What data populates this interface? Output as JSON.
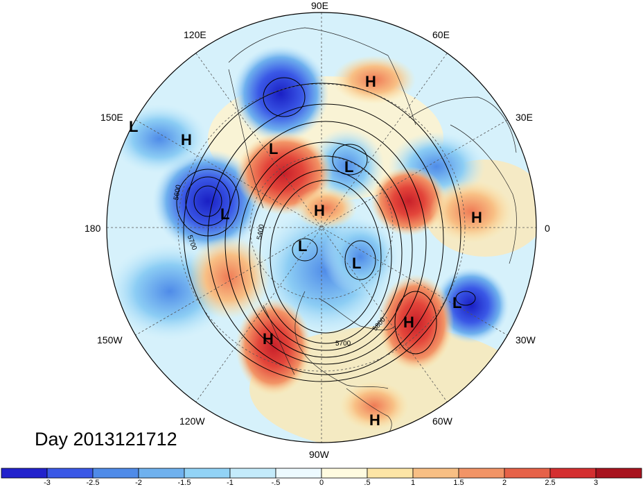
{
  "title": "Day 2013121712",
  "longitude_labels": {
    "top": "90E",
    "upper_left": "120E",
    "upper_right": "60E",
    "left_upper": "150E",
    "right_upper": "30E",
    "left": "180",
    "right": "0",
    "left_lower": "150W",
    "right_lower": "30W",
    "lower_left": "120W",
    "lower_right": "60W",
    "bottom": "90W"
  },
  "pressure_centers": [
    "L",
    "H",
    "H",
    "L",
    "L",
    "L",
    "H",
    "H",
    "L",
    "L",
    "L",
    "H",
    "H",
    "H"
  ],
  "contour_labels": [
    "5600",
    "5700",
    "5400",
    "5800",
    "5700"
  ],
  "colorbar": {
    "colors": [
      "#2222cc",
      "#3a58e6",
      "#4f8be8",
      "#6fb1ee",
      "#92d3f6",
      "#c4ebfb",
      "#edfaff",
      "#fffbe0",
      "#fde5a6",
      "#f8bf84",
      "#f29466",
      "#e66248",
      "#d42f30",
      "#a8131f"
    ],
    "tick_labels": [
      "-3",
      "-2.5",
      "-2",
      "-1.5",
      "-1",
      "-.5",
      "0",
      ".5",
      "1",
      "1.5",
      "2",
      "2.5",
      "3"
    ]
  }
}
